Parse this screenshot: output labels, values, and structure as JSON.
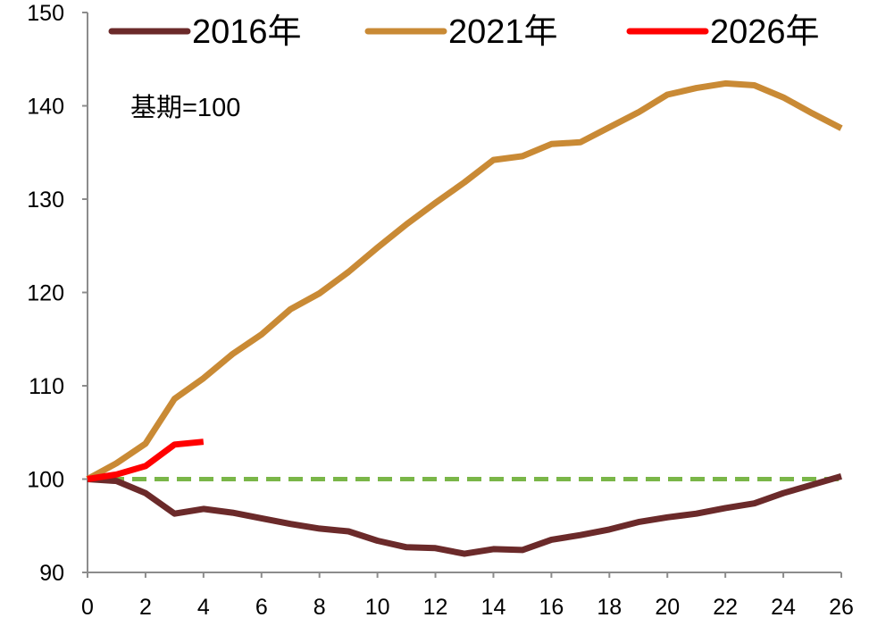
{
  "chart_data": {
    "type": "line",
    "annotation": "基期=100",
    "xlim": [
      0,
      26
    ],
    "ylim": [
      90,
      150
    ],
    "x_ticks": [
      0,
      2,
      4,
      6,
      8,
      10,
      12,
      14,
      16,
      18,
      20,
      22,
      24,
      26
    ],
    "y_ticks": [
      90,
      100,
      110,
      120,
      130,
      140,
      150
    ],
    "grid": false,
    "legend_position": "top",
    "reference_line": {
      "y": 100,
      "style": "dashed",
      "color": "#7ab648"
    },
    "series": [
      {
        "name": "2016年",
        "color": "#6b2a2a",
        "x": [
          0,
          1,
          2,
          3,
          4,
          5,
          6,
          7,
          8,
          9,
          10,
          11,
          12,
          13,
          14,
          15,
          16,
          17,
          18,
          19,
          20,
          21,
          22,
          23,
          24,
          25,
          26
        ],
        "y": [
          100,
          99.8,
          98.5,
          96.3,
          96.8,
          96.4,
          95.8,
          95.2,
          94.7,
          94.4,
          93.4,
          92.7,
          92.6,
          92.0,
          92.5,
          92.4,
          93.5,
          94.0,
          94.6,
          95.4,
          95.9,
          96.3,
          96.9,
          97.4,
          98.5,
          99.4,
          100.3
        ]
      },
      {
        "name": "2021年",
        "color": "#c98a35",
        "x": [
          0,
          1,
          2,
          3,
          4,
          5,
          6,
          7,
          8,
          9,
          10,
          11,
          12,
          13,
          14,
          15,
          16,
          17,
          18,
          19,
          20,
          21,
          22,
          23,
          24,
          25,
          26
        ],
        "y": [
          100,
          101.7,
          103.8,
          108.6,
          110.8,
          113.4,
          115.5,
          118.2,
          119.9,
          122.2,
          124.8,
          127.3,
          129.6,
          131.8,
          134.2,
          134.6,
          135.9,
          136.1,
          137.7,
          139.3,
          141.2,
          141.9,
          142.4,
          142.2,
          140.9,
          139.2,
          137.6
        ]
      },
      {
        "name": "2026年",
        "color": "#ff0000",
        "x": [
          0,
          1,
          2,
          3,
          4
        ],
        "y": [
          100,
          100.5,
          101.4,
          103.7,
          104.0
        ]
      }
    ]
  }
}
